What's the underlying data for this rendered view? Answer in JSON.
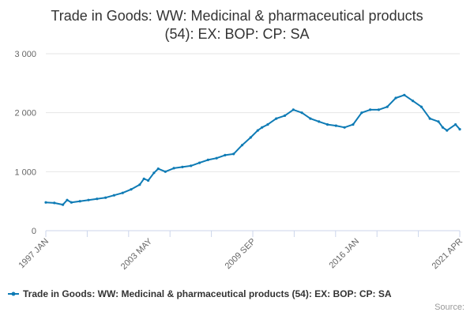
{
  "chart_data": {
    "type": "line",
    "title": "Trade in Goods: WW: Medicinal & pharmaceutical products (54): EX: BOP: CP: SA",
    "xlabel": "",
    "ylabel": "",
    "x_tick_labels": [
      "1997 JAN",
      "2003 MAY",
      "2009 SEP",
      "2016 JAN",
      "2021 APR"
    ],
    "y_tick_labels": [
      "0",
      "1 000",
      "2 000",
      "3 000"
    ],
    "y_ticks": [
      0,
      1000,
      2000,
      3000
    ],
    "ylim": [
      0,
      3000
    ],
    "grid": "horizontal",
    "legend_position": "bottom",
    "source": "Source:",
    "series": [
      {
        "name": "Trade in Goods: WW: Medicinal & pharmaceutical products (54): EX: BOP: CP: SA",
        "color": "#0e7bb5",
        "points": [
          [
            "1997-01",
            480
          ],
          [
            "1997-07",
            470
          ],
          [
            "1998-01",
            440
          ],
          [
            "1998-04",
            520
          ],
          [
            "1998-07",
            480
          ],
          [
            "1999-01",
            500
          ],
          [
            "1999-07",
            520
          ],
          [
            "2000-01",
            540
          ],
          [
            "2000-07",
            560
          ],
          [
            "2001-01",
            600
          ],
          [
            "2001-07",
            640
          ],
          [
            "2002-01",
            700
          ],
          [
            "2002-07",
            780
          ],
          [
            "2002-10",
            880
          ],
          [
            "2003-01",
            850
          ],
          [
            "2003-05",
            980
          ],
          [
            "2003-08",
            1050
          ],
          [
            "2004-01",
            1000
          ],
          [
            "2004-07",
            1060
          ],
          [
            "2005-01",
            1080
          ],
          [
            "2005-07",
            1100
          ],
          [
            "2006-01",
            1150
          ],
          [
            "2006-07",
            1200
          ],
          [
            "2007-01",
            1230
          ],
          [
            "2007-07",
            1280
          ],
          [
            "2008-01",
            1300
          ],
          [
            "2008-07",
            1450
          ],
          [
            "2009-01",
            1580
          ],
          [
            "2009-06",
            1700
          ],
          [
            "2009-09",
            1750
          ],
          [
            "2010-01",
            1800
          ],
          [
            "2010-07",
            1900
          ],
          [
            "2011-01",
            1950
          ],
          [
            "2011-07",
            2050
          ],
          [
            "2012-01",
            2000
          ],
          [
            "2012-07",
            1900
          ],
          [
            "2013-01",
            1850
          ],
          [
            "2013-07",
            1800
          ],
          [
            "2014-01",
            1780
          ],
          [
            "2014-07",
            1750
          ],
          [
            "2015-01",
            1800
          ],
          [
            "2015-07",
            2000
          ],
          [
            "2016-01",
            2050
          ],
          [
            "2016-07",
            2050
          ],
          [
            "2017-01",
            2100
          ],
          [
            "2017-07",
            2250
          ],
          [
            "2018-01",
            2300
          ],
          [
            "2018-07",
            2200
          ],
          [
            "2019-01",
            2100
          ],
          [
            "2019-07",
            1900
          ],
          [
            "2020-01",
            1850
          ],
          [
            "2020-04",
            1750
          ],
          [
            "2020-07",
            1700
          ],
          [
            "2021-01",
            1800
          ],
          [
            "2021-04",
            1720
          ]
        ]
      }
    ]
  }
}
